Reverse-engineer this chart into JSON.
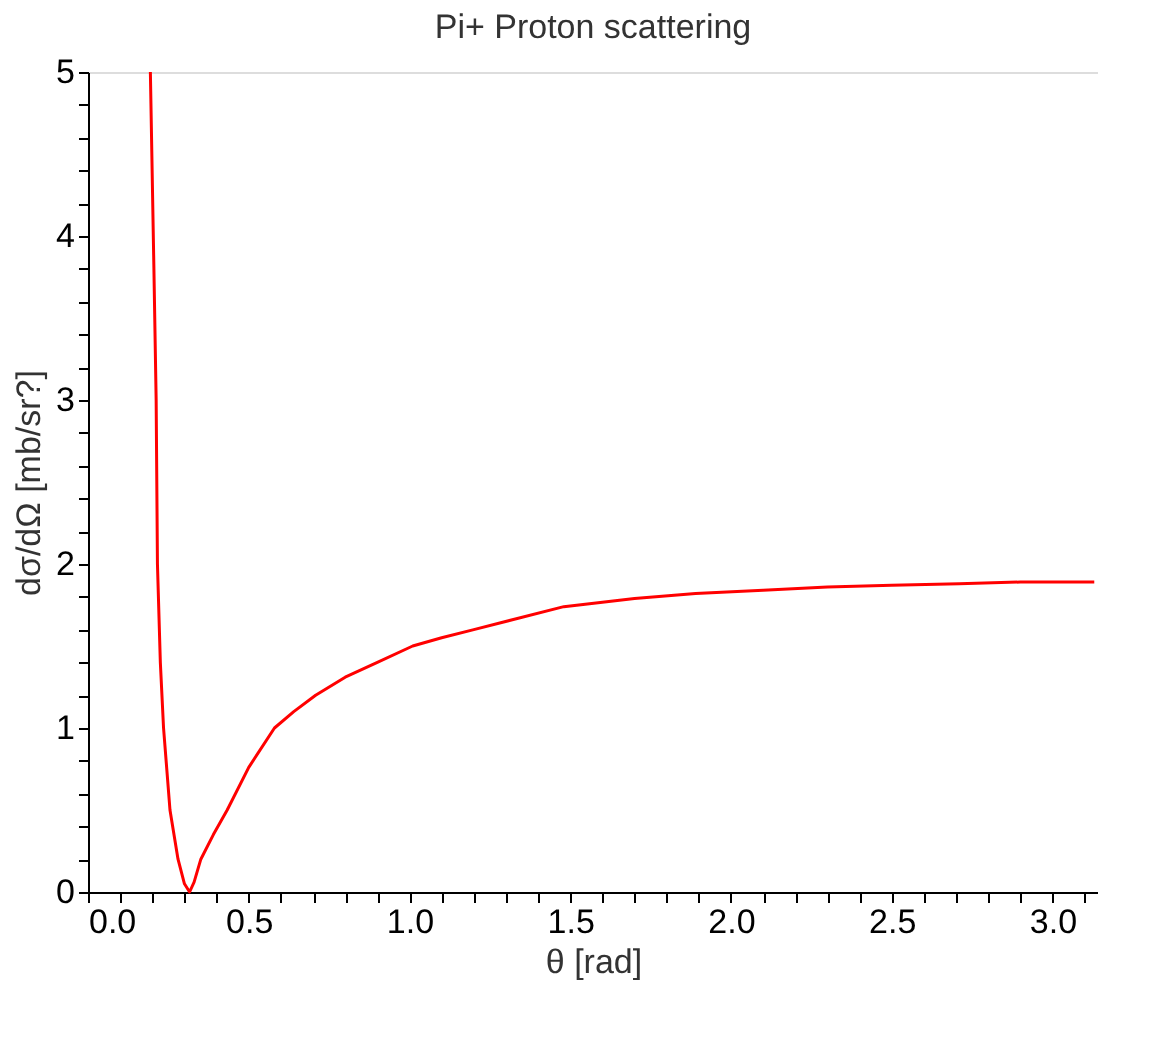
{
  "chart_data": {
    "type": "line",
    "title": "Pi+ Proton scattering",
    "xlabel": "θ [rad]",
    "ylabel": "dσ/dΩ [mb/sr?]",
    "x": [
      0.194,
      0.205,
      0.212,
      0.216,
      0.225,
      0.235,
      0.255,
      0.28,
      0.3,
      0.316,
      0.33,
      0.351,
      0.39,
      0.433,
      0.5,
      0.58,
      0.64,
      0.708,
      0.8,
      0.9,
      1.01,
      1.1,
      1.2,
      1.32,
      1.48,
      1.7,
      1.89,
      2.1,
      2.3,
      2.5,
      2.71,
      2.9,
      3.13
    ],
    "series": [
      {
        "color": "#ff0000",
        "values": [
          5,
          3.8,
          3,
          2,
          1.4,
          1,
          0.5,
          0.2,
          0.05,
          0,
          0.06,
          0.2,
          0.35,
          0.5,
          0.76,
          1,
          1.1,
          1.2,
          1.31,
          1.4,
          1.5,
          1.55,
          1.6,
          1.66,
          1.74,
          1.79,
          1.82,
          1.84,
          1.86,
          1.87,
          1.88,
          1.89,
          1.89
        ]
      }
    ],
    "xlim": [
      0,
      3.1416
    ],
    "ylim": [
      0,
      5
    ],
    "xticks": [
      {
        "value": 0,
        "label": "0.0"
      },
      {
        "value": 0.1,
        "label": null
      },
      {
        "value": 0.2,
        "label": null
      },
      {
        "value": 0.3,
        "label": null
      },
      {
        "value": 0.4,
        "label": null
      },
      {
        "value": 0.5,
        "label": "0.5"
      },
      {
        "value": 0.6,
        "label": null
      },
      {
        "value": 0.7,
        "label": null
      },
      {
        "value": 0.8,
        "label": null
      },
      {
        "value": 0.9,
        "label": null
      },
      {
        "value": 1,
        "label": "1.0"
      },
      {
        "value": 1.1,
        "label": null
      },
      {
        "value": 1.2,
        "label": null
      },
      {
        "value": 1.3,
        "label": null
      },
      {
        "value": 1.4,
        "label": null
      },
      {
        "value": 1.5,
        "label": "1.5"
      },
      {
        "value": 1.6,
        "label": null
      },
      {
        "value": 1.7,
        "label": null
      },
      {
        "value": 1.8,
        "label": null
      },
      {
        "value": 1.9,
        "label": null
      },
      {
        "value": 2,
        "label": "2.0"
      },
      {
        "value": 2.1,
        "label": null
      },
      {
        "value": 2.2,
        "label": null
      },
      {
        "value": 2.3,
        "label": null
      },
      {
        "value": 2.4,
        "label": null
      },
      {
        "value": 2.5,
        "label": "2.5"
      },
      {
        "value": 2.6,
        "label": null
      },
      {
        "value": 2.7,
        "label": null
      },
      {
        "value": 2.8,
        "label": null
      },
      {
        "value": 2.9,
        "label": null
      },
      {
        "value": 3,
        "label": "3.0"
      },
      {
        "value": 3.1,
        "label": null
      }
    ],
    "yticks": [
      0,
      {
        "value": 0.2,
        "label": null
      },
      {
        "value": 0.4,
        "label": null
      },
      {
        "value": 0.6,
        "label": null
      },
      {
        "value": 0.8,
        "label": null
      },
      1,
      {
        "value": 1.2,
        "label": null
      },
      {
        "value": 1.4,
        "label": null
      },
      {
        "value": 1.6,
        "label": null
      },
      {
        "value": 1.8,
        "label": null
      },
      2,
      {
        "value": 2.2,
        "label": null
      },
      {
        "value": 2.4,
        "label": null
      },
      {
        "value": 2.6,
        "label": null
      },
      {
        "value": 2.8,
        "label": null
      },
      3,
      {
        "value": 3.2,
        "label": null
      },
      {
        "value": 3.4,
        "label": null
      },
      {
        "value": 3.6,
        "label": null
      },
      {
        "value": 3.8,
        "label": null
      },
      4,
      {
        "value": 4.2,
        "label": null
      },
      {
        "value": 4.4,
        "label": null
      },
      {
        "value": 4.6,
        "label": null
      },
      {
        "value": 4.8,
        "label": null
      },
      5
    ],
    "grid": false,
    "legend": false,
    "marker": "none",
    "line_style": "solid"
  }
}
